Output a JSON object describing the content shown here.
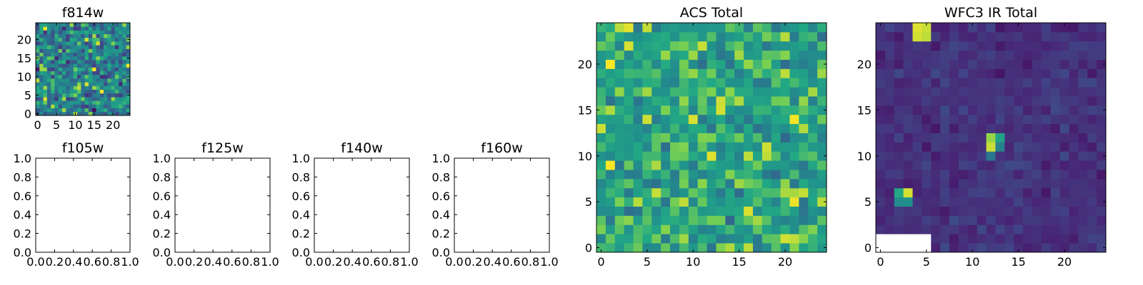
{
  "chart_data": [
    {
      "type": "heatmap",
      "title": "f814w",
      "xlim": [
        -0.5,
        24.5
      ],
      "ylim": [
        -0.5,
        24.5
      ],
      "xticks": [
        0,
        5,
        10,
        15,
        20
      ],
      "yticks": [
        0,
        5,
        10,
        15,
        20
      ],
      "xtick_labels": [
        "0",
        "5",
        "10",
        "15",
        "20"
      ],
      "ytick_labels": [
        "0",
        "5",
        "10",
        "15",
        "20"
      ],
      "colormap": "viridis",
      "grid_size": [
        25,
        25
      ],
      "noise_level": 0.55,
      "noise_spread": 0.35,
      "seed": 11,
      "sources": []
    },
    {
      "type": "heatmap",
      "title": "f105w",
      "empty": true,
      "xlim": [
        0,
        1
      ],
      "ylim": [
        0,
        1
      ],
      "xticks": [
        0,
        0.2,
        0.4,
        0.6,
        0.8,
        1.0
      ],
      "yticks": [
        0,
        0.2,
        0.4,
        0.6,
        0.8,
        1.0
      ],
      "xtick_labels": [
        "0.0",
        "0.2",
        "0.4",
        "0.6",
        "0.8",
        "1.0"
      ],
      "ytick_labels": [
        "0.0",
        "0.2",
        "0.4",
        "0.6",
        "0.8",
        "1.0"
      ]
    },
    {
      "type": "heatmap",
      "title": "f125w",
      "empty": true,
      "xlim": [
        0,
        1
      ],
      "ylim": [
        0,
        1
      ],
      "xticks": [
        0,
        0.2,
        0.4,
        0.6,
        0.8,
        1.0
      ],
      "yticks": [
        0,
        0.2,
        0.4,
        0.6,
        0.8,
        1.0
      ],
      "xtick_labels": [
        "0.0",
        "0.2",
        "0.4",
        "0.6",
        "0.8",
        "1.0"
      ],
      "ytick_labels": [
        "0.0",
        "0.2",
        "0.4",
        "0.6",
        "0.8",
        "1.0"
      ]
    },
    {
      "type": "heatmap",
      "title": "f140w",
      "empty": true,
      "xlim": [
        0,
        1
      ],
      "ylim": [
        0,
        1
      ],
      "xticks": [
        0,
        0.2,
        0.4,
        0.6,
        0.8,
        1.0
      ],
      "yticks": [
        0,
        0.2,
        0.4,
        0.6,
        0.8,
        1.0
      ],
      "xtick_labels": [
        "0.0",
        "0.2",
        "0.4",
        "0.6",
        "0.8",
        "1.0"
      ],
      "ytick_labels": [
        "0.0",
        "0.2",
        "0.4",
        "0.6",
        "0.8",
        "1.0"
      ]
    },
    {
      "type": "heatmap",
      "title": "f160w",
      "empty": true,
      "xlim": [
        0,
        1
      ],
      "ylim": [
        0,
        1
      ],
      "xticks": [
        0,
        0.2,
        0.4,
        0.6,
        0.8,
        1.0
      ],
      "yticks": [
        0,
        0.2,
        0.4,
        0.6,
        0.8,
        1.0
      ],
      "xtick_labels": [
        "0.0",
        "0.2",
        "0.4",
        "0.6",
        "0.8",
        "1.0"
      ],
      "ytick_labels": [
        "0.0",
        "0.2",
        "0.4",
        "0.6",
        "0.8",
        "1.0"
      ]
    },
    {
      "type": "heatmap",
      "title": "ACS Total",
      "xlim": [
        -0.5,
        24.5
      ],
      "ylim": [
        -0.5,
        24.5
      ],
      "xticks": [
        0,
        5,
        10,
        15,
        20
      ],
      "yticks": [
        0,
        5,
        10,
        15,
        20
      ],
      "xtick_labels": [
        "0",
        "5",
        "10",
        "15",
        "20"
      ],
      "ytick_labels": [
        "0",
        "5",
        "10",
        "15",
        "20"
      ],
      "colormap": "viridis",
      "grid_size": [
        25,
        25
      ],
      "noise_level": 0.72,
      "noise_spread": 0.22,
      "seed": 29,
      "sources": []
    },
    {
      "type": "heatmap",
      "title": "WFC3 IR Total",
      "xlim": [
        -0.5,
        24.5
      ],
      "ylim": [
        -0.5,
        24.5
      ],
      "xticks": [
        0,
        5,
        10,
        15,
        20
      ],
      "yticks": [
        0,
        5,
        10,
        15,
        20
      ],
      "xtick_labels": [
        "0",
        "5",
        "10",
        "15",
        "20"
      ],
      "ytick_labels": [
        "0",
        "5",
        "10",
        "15",
        "20"
      ],
      "colormap": "viridis",
      "grid_size": [
        25,
        25
      ],
      "noise_level": 0.18,
      "noise_spread": 0.08,
      "seed": 47,
      "sources": [
        {
          "x": 4,
          "y": 24,
          "value": 0.97
        },
        {
          "x": 5,
          "y": 24,
          "value": 0.95
        },
        {
          "x": 4,
          "y": 23,
          "value": 0.96
        },
        {
          "x": 5,
          "y": 23,
          "value": 0.94
        },
        {
          "x": 12,
          "y": 12,
          "value": 0.9
        },
        {
          "x": 13,
          "y": 12,
          "value": 0.72
        },
        {
          "x": 12,
          "y": 11,
          "value": 0.95
        },
        {
          "x": 13,
          "y": 11,
          "value": 0.55
        },
        {
          "x": 12,
          "y": 10,
          "value": 0.5
        },
        {
          "x": 2,
          "y": 6,
          "value": 0.75
        },
        {
          "x": 3,
          "y": 6,
          "value": 0.96
        },
        {
          "x": 2,
          "y": 5,
          "value": 0.6
        },
        {
          "x": 3,
          "y": 5,
          "value": 0.62
        }
      ],
      "masked": [
        {
          "x": 0,
          "y": 0
        },
        {
          "x": 1,
          "y": 0
        },
        {
          "x": 2,
          "y": 0
        },
        {
          "x": 3,
          "y": 0
        },
        {
          "x": 4,
          "y": 0
        },
        {
          "x": 5,
          "y": 0
        },
        {
          "x": 0,
          "y": 1
        },
        {
          "x": 1,
          "y": 1
        },
        {
          "x": 2,
          "y": 1
        },
        {
          "x": 3,
          "y": 1
        },
        {
          "x": 4,
          "y": 1
        },
        {
          "x": 5,
          "y": 1
        }
      ]
    }
  ]
}
